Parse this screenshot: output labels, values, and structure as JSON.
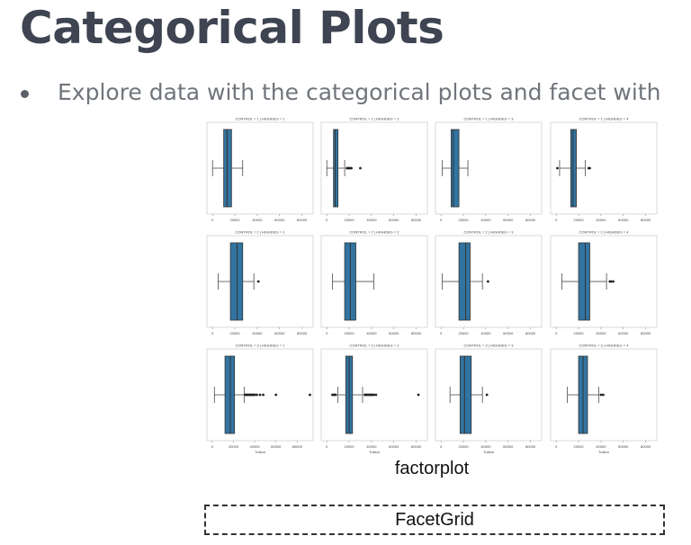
{
  "slide": {
    "title": "Categorical Plots",
    "bullet": "Explore data with the categorical plots and facet with",
    "caption": "factorplot",
    "facetgrid_label": "FacetGrid"
  },
  "colors": {
    "title": "#3e4451",
    "bullet_text": "#70757c",
    "box_fill": "#3274a1",
    "box_stroke": "#333333"
  },
  "chart_data": {
    "type": "boxplot",
    "facet_rows": "CONTROL",
    "facet_cols": "HIGHDEG",
    "xlabel": "Tuition",
    "xticks": [
      "0",
      "20000",
      "40000",
      "60000",
      "80000"
    ],
    "panels": [
      {
        "title": "CONTROL = 1 | HIGHDEG = 1",
        "xlim": [
          -5000,
          90000
        ],
        "whisker_low": 0,
        "q1": 10000,
        "median": 13000,
        "q3": 17000,
        "whisker_high": 27000,
        "outliers": []
      },
      {
        "title": "CONTROL = 1 | HIGHDEG = 2",
        "xlim": [
          -5000,
          90000
        ],
        "whisker_low": 0,
        "q1": 6000,
        "median": 7500,
        "q3": 10000,
        "whisker_high": 16000,
        "outliers": [
          18000,
          19000,
          20000,
          21000,
          22000,
          30000
        ]
      },
      {
        "title": "CONTROL = 1 | HIGHDEG = 3",
        "xlim": [
          -5000,
          90000
        ],
        "whisker_low": 1000,
        "q1": 9000,
        "median": 11000,
        "q3": 16000,
        "whisker_high": 24000,
        "outliers": []
      },
      {
        "title": "CONTROL = 1 | HIGHDEG = 4",
        "xlim": [
          -5000,
          90000
        ],
        "whisker_low": 3000,
        "q1": 13000,
        "median": 15000,
        "q3": 18000,
        "whisker_high": 26000,
        "outliers": [
          1000,
          29000,
          30000
        ]
      },
      {
        "title": "CONTROL = 2 | HIGHDEG = 1",
        "xlim": [
          -5000,
          90000
        ],
        "whisker_low": 5000,
        "q1": 16000,
        "median": 22000,
        "q3": 27000,
        "whisker_high": 37000,
        "outliers": [
          41000
        ]
      },
      {
        "title": "CONTROL = 2 | HIGHDEG = 2",
        "xlim": [
          -5000,
          90000
        ],
        "whisker_low": 5000,
        "q1": 16000,
        "median": 21000,
        "q3": 26000,
        "whisker_high": 42000,
        "outliers": []
      },
      {
        "title": "CONTROL = 2 | HIGHDEG = 3",
        "xlim": [
          -5000,
          90000
        ],
        "whisker_low": 1000,
        "q1": 16000,
        "median": 22000,
        "q3": 26000,
        "whisker_high": 37000,
        "outliers": [
          42000
        ]
      },
      {
        "title": "CONTROL = 2 | HIGHDEG = 4",
        "xlim": [
          -5000,
          90000
        ],
        "whisker_low": 5000,
        "q1": 20000,
        "median": 26000,
        "q3": 30000,
        "whisker_high": 45000,
        "outliers": [
          48000,
          49000,
          51000
        ]
      },
      {
        "title": "CONTROL = 3 | HIGHDEG = 1",
        "xlim": [
          -5000,
          95000
        ],
        "whisker_low": 2000,
        "q1": 12000,
        "median": 17000,
        "q3": 21000,
        "whisker_high": 30000,
        "outliers": [
          31000,
          32000,
          33000,
          34000,
          35000,
          36000,
          37000,
          38000,
          39000,
          40000,
          42000,
          45000,
          48000,
          60000,
          92000
        ]
      },
      {
        "title": "CONTROL = 3 | HIGHDEG = 2",
        "xlim": [
          -5000,
          90000
        ],
        "whisker_low": 10000,
        "q1": 17000,
        "median": 20000,
        "q3": 23000,
        "whisker_high": 32000,
        "outliers": [
          5000,
          6000,
          7000,
          8000,
          34000,
          35000,
          36000,
          37000,
          38000,
          39000,
          40000,
          41000,
          42000,
          44000,
          82000
        ]
      },
      {
        "title": "CONTROL = 3 | HIGHDEG = 3",
        "xlim": [
          -5000,
          90000
        ],
        "whisker_low": 8000,
        "q1": 17000,
        "median": 21000,
        "q3": 27000,
        "whisker_high": 37000,
        "outliers": [
          41000
        ]
      },
      {
        "title": "CONTROL = 3 | HIGHDEG = 4",
        "xlim": [
          -5000,
          90000
        ],
        "whisker_low": 10000,
        "q1": 20000,
        "median": 24000,
        "q3": 28000,
        "whisker_high": 38000,
        "outliers": [
          40000,
          42000
        ]
      }
    ]
  }
}
